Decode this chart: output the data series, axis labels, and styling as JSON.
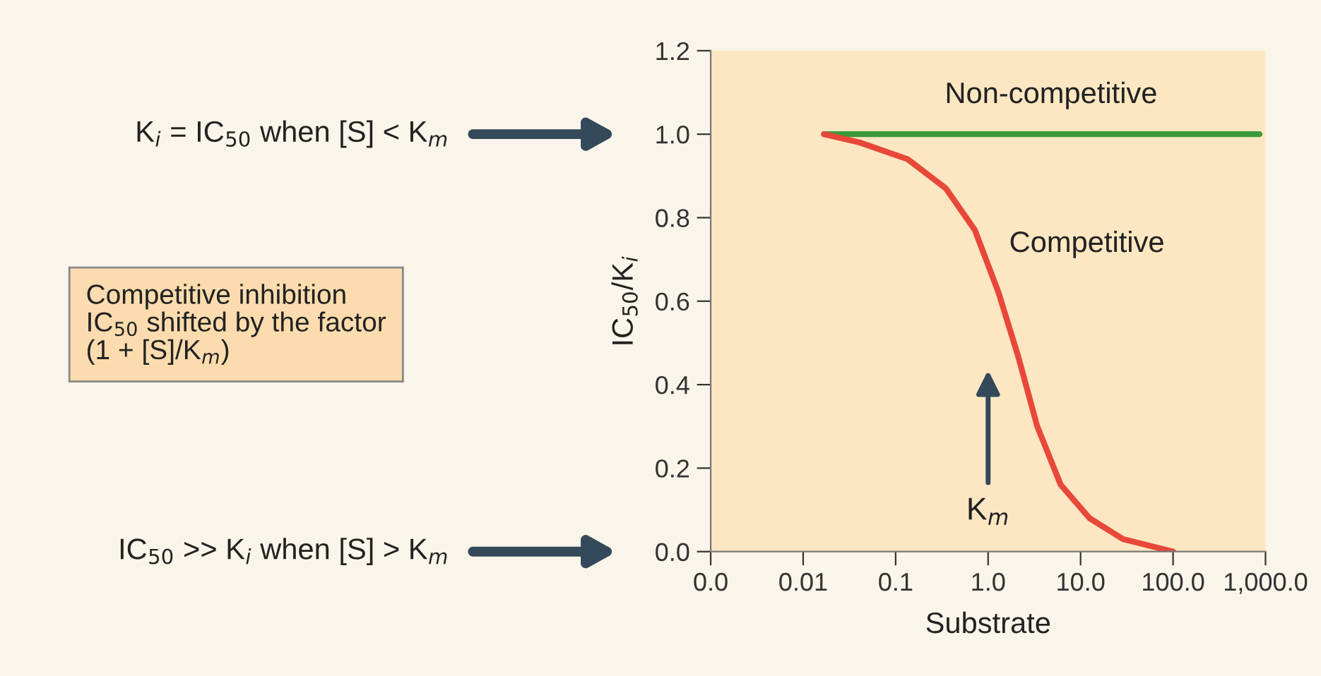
{
  "chart_data": {
    "type": "line",
    "xlabel": "Substrate",
    "ylabel": "IC$_{50}$/K$_{i}$",
    "log": "x",
    "xlim": [
      0.001,
      1000
    ],
    "xticks": [
      {
        "value": 0.001,
        "label": "0.0"
      },
      0.01,
      0.1,
      {
        "value": 1,
        "label": "1.0"
      },
      {
        "value": 10,
        "label": "10.0"
      },
      {
        "value": 100,
        "label": "100.0"
      },
      {
        "value": 1000,
        "label": "1,000.0"
      }
    ],
    "ylim": [
      0,
      1.2
    ],
    "yticks": [
      {
        "value": 0,
        "label": "0.0"
      },
      0.2,
      0.4,
      0.6,
      0.8,
      {
        "value": 1,
        "label": "1.0"
      },
      1.2
    ],
    "grid": false,
    "legend": false,
    "marker": "none",
    "line_style": "solid",
    "series": [
      {
        "name": "Non-competitive",
        "color": "#3a9a3a",
        "x": [
          0.0168,
          860
        ],
        "values": [
          1.0,
          1.0
        ]
      },
      {
        "name": "Competitive",
        "color": "#e8483a",
        "x": [
          0.0168,
          0.041,
          0.135,
          0.35,
          0.72,
          1.3,
          2.1,
          3.4,
          6.1,
          12.5,
          28.8,
          100
        ],
        "values": [
          1.0,
          0.98,
          0.94,
          0.87,
          0.77,
          0.62,
          0.47,
          0.3,
          0.16,
          0.08,
          0.03,
          0.0
        ]
      }
    ],
    "annotations": [
      "K$_{i}$ = IC$_{50}$ when [S] < K$_{m}$",
      "Competitive inhibition\nIC$_{50}$ shifted by the factor\n(1 + [S]/K$_{m}$)",
      "IC$_{50}$ >> K$_{i}$ when [S] > K$_{m}$",
      "K$_{m}$"
    ]
  }
}
